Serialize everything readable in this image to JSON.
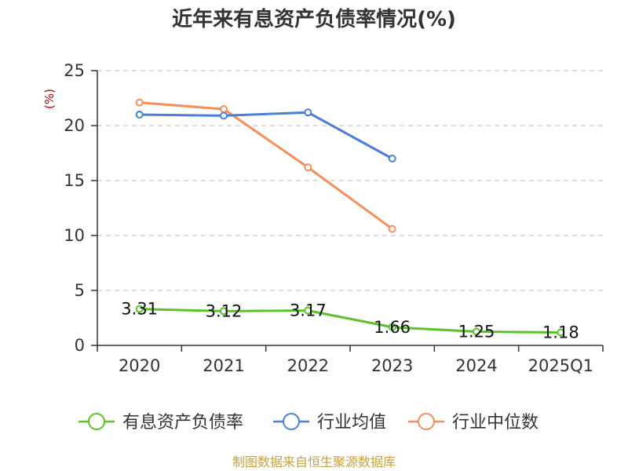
{
  "chart_data": {
    "type": "line",
    "title": "近年来有息资产负债率情况(%)",
    "ylabel": "(%)",
    "categories": [
      "2020",
      "2021",
      "2022",
      "2023",
      "2024",
      "2025Q1"
    ],
    "yticks": [
      "0",
      "5",
      "10",
      "15",
      "20",
      "25"
    ],
    "ylim": [
      0,
      25
    ],
    "grid": true,
    "legend_position": "bottom",
    "series": [
      {
        "name": "有息资产负债率",
        "color": "#5cc22a",
        "values": [
          3.31,
          3.12,
          3.17,
          1.66,
          1.25,
          1.18
        ],
        "labels": [
          "3.31",
          "3.12",
          "3.17",
          "1.66",
          "1.25",
          "1.18"
        ]
      },
      {
        "name": "行业均值",
        "color": "#4a7fd9",
        "values": [
          21.0,
          20.9,
          21.2,
          17.0,
          null,
          null
        ]
      },
      {
        "name": "行业中位数",
        "color": "#f78d5a",
        "values": [
          22.1,
          21.5,
          16.2,
          10.6,
          null,
          null
        ]
      }
    ],
    "source": "制图数据来自恒生聚源数据库"
  }
}
